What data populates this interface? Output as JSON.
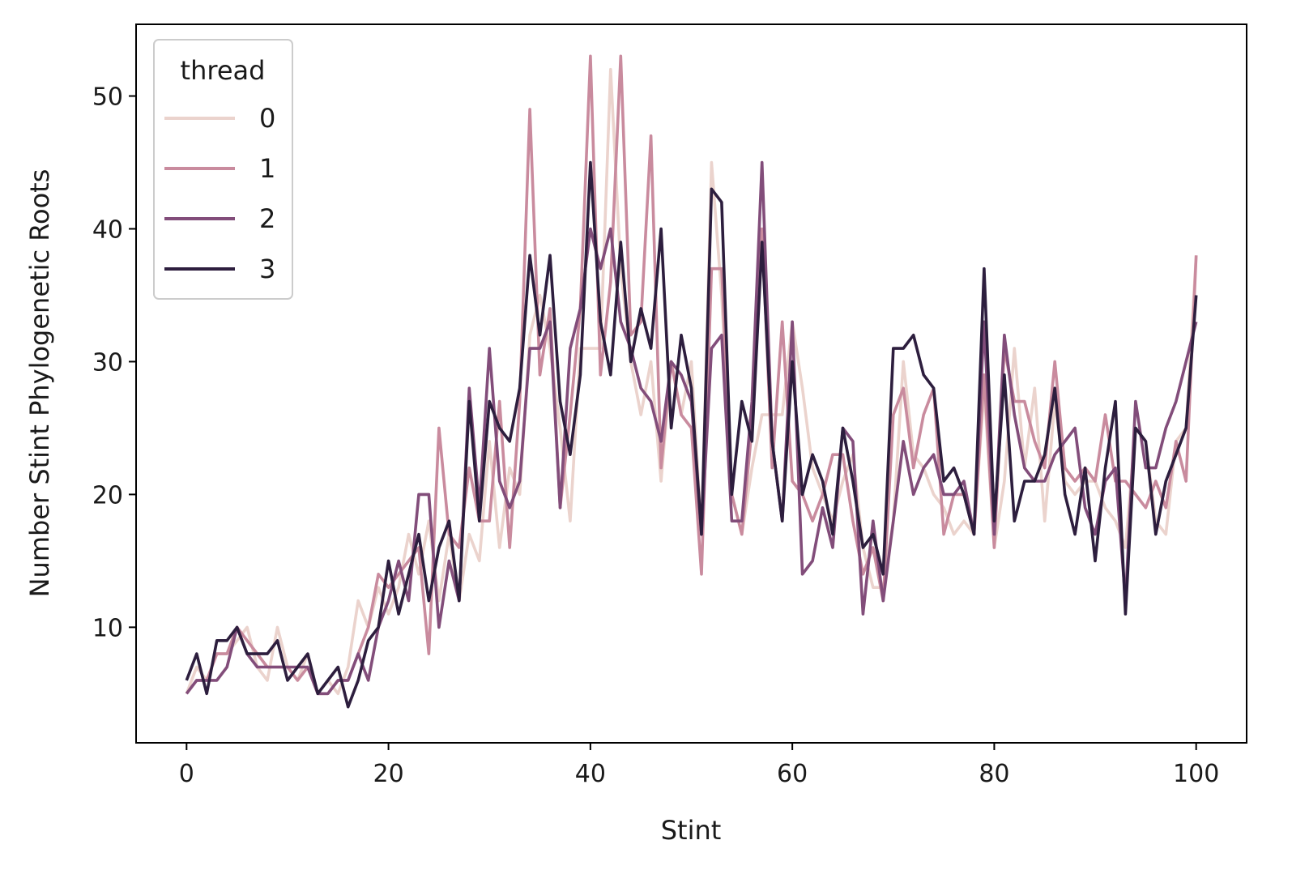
{
  "chart_data": {
    "type": "line",
    "title": "",
    "xlabel": "Stint",
    "ylabel": "Number Stint Phylogenetic Roots",
    "xlim": [
      -5,
      105
    ],
    "ylim": [
      1.3,
      55.4
    ],
    "xticks": [
      0,
      20,
      40,
      60,
      80,
      100
    ],
    "yticks": [
      10,
      20,
      30,
      40,
      50
    ],
    "grid": false,
    "legend": {
      "title": "thread",
      "placement": "top-left"
    },
    "x_start": 0,
    "x_step": 1,
    "series": [
      {
        "name": "0",
        "color": "#ebd3cd",
        "values": [
          5,
          7,
          6,
          8,
          8,
          9,
          10,
          7,
          6,
          10,
          7,
          6,
          8,
          5,
          6,
          5,
          7,
          12,
          10,
          13,
          11,
          13,
          17,
          14,
          18,
          12,
          17,
          12,
          17,
          15,
          24,
          16,
          22,
          20,
          32,
          35,
          31,
          25,
          18,
          31,
          31,
          31,
          52,
          37,
          30,
          26,
          30,
          21,
          30,
          26,
          30,
          17,
          45,
          35,
          20,
          17,
          22,
          26,
          26,
          26,
          33,
          28,
          22,
          20,
          18,
          21,
          23,
          16,
          13,
          13,
          18,
          30,
          23,
          22,
          20,
          19,
          17,
          18,
          17,
          28,
          16,
          21,
          31,
          22,
          28,
          18,
          27,
          21,
          20,
          21,
          21,
          19,
          18,
          16,
          25,
          24,
          18,
          17,
          24,
          25,
          38
        ]
      },
      {
        "name": "1",
        "color": "#c98b9e",
        "values": [
          5,
          6,
          6,
          8,
          8,
          10,
          9,
          8,
          7,
          7,
          7,
          6,
          7,
          5,
          5,
          6,
          6,
          8,
          10,
          14,
          13,
          14,
          15,
          16,
          8,
          25,
          17,
          16,
          22,
          18,
          18,
          27,
          16,
          27,
          49,
          29,
          34,
          19,
          26,
          34,
          53,
          29,
          36,
          53,
          32,
          33,
          47,
          22,
          30,
          26,
          25,
          14,
          37,
          37,
          20,
          17,
          25,
          40,
          22,
          33,
          21,
          20,
          18,
          20,
          23,
          23,
          18,
          14,
          16,
          12,
          26,
          28,
          22,
          26,
          28,
          17,
          20,
          20,
          17,
          29,
          16,
          31,
          27,
          27,
          24,
          22,
          30,
          22,
          21,
          22,
          21,
          26,
          21,
          21,
          20,
          19,
          21,
          19,
          24,
          21,
          38
        ]
      },
      {
        "name": "2",
        "color": "#824d7a",
        "values": [
          5,
          6,
          6,
          6,
          7,
          10,
          8,
          7,
          7,
          7,
          7,
          7,
          7,
          5,
          5,
          6,
          6,
          8,
          6,
          10,
          12,
          15,
          12,
          20,
          20,
          10,
          15,
          12,
          28,
          19,
          31,
          21,
          19,
          21,
          31,
          31,
          33,
          19,
          31,
          34,
          40,
          37,
          40,
          33,
          31,
          28,
          27,
          24,
          30,
          29,
          27,
          17,
          31,
          32,
          18,
          18,
          27,
          45,
          24,
          18,
          33,
          14,
          15,
          19,
          16,
          25,
          24,
          11,
          18,
          12,
          18,
          24,
          20,
          22,
          23,
          20,
          20,
          21,
          17,
          33,
          17,
          32,
          26,
          22,
          21,
          21,
          23,
          24,
          25,
          19,
          17,
          21,
          22,
          12,
          27,
          22,
          22,
          25,
          27,
          30,
          33
        ]
      },
      {
        "name": "3",
        "color": "#2d1e3e",
        "values": [
          6,
          8,
          5,
          9,
          9,
          10,
          8,
          8,
          8,
          9,
          6,
          7,
          8,
          5,
          6,
          7,
          4,
          6,
          9,
          10,
          15,
          11,
          14,
          17,
          12,
          16,
          18,
          12,
          27,
          18,
          27,
          25,
          24,
          28,
          38,
          32,
          38,
          27,
          23,
          29,
          45,
          33,
          29,
          39,
          30,
          34,
          31,
          40,
          25,
          32,
          28,
          17,
          43,
          42,
          20,
          27,
          24,
          39,
          24,
          18,
          30,
          20,
          23,
          21,
          17,
          25,
          21,
          16,
          17,
          14,
          31,
          31,
          32,
          29,
          28,
          21,
          22,
          20,
          17,
          37,
          18,
          29,
          18,
          21,
          21,
          23,
          28,
          20,
          17,
          22,
          15,
          22,
          27,
          11,
          25,
          24,
          17,
          21,
          23,
          25,
          35
        ]
      }
    ]
  }
}
